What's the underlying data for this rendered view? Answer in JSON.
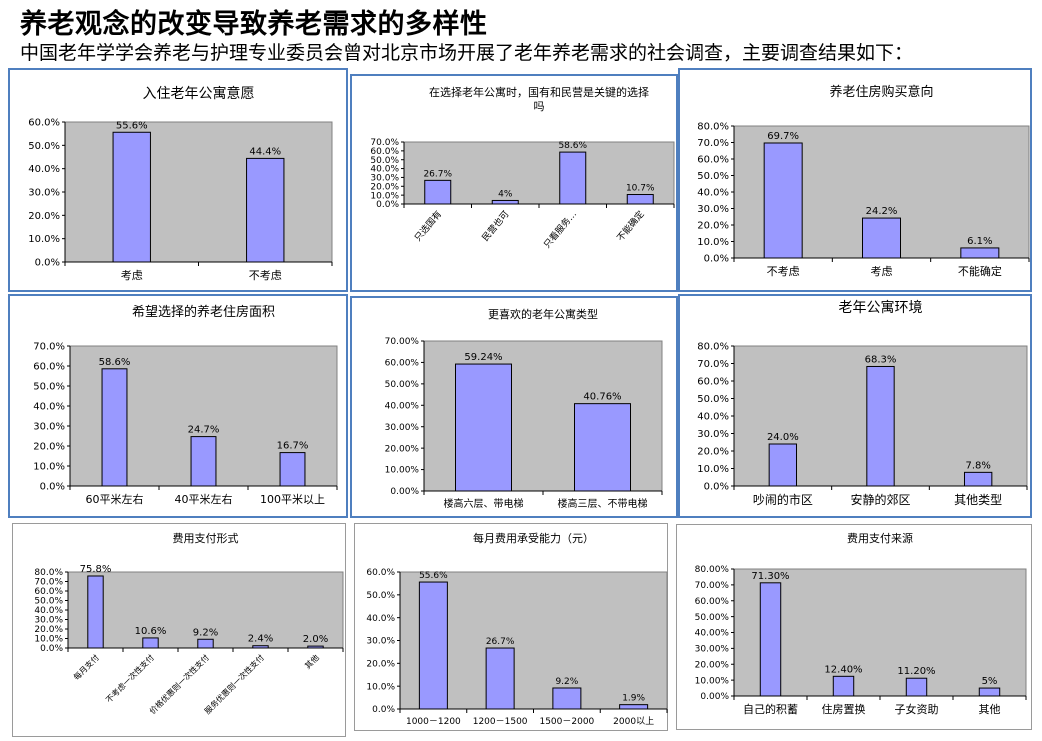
{
  "slide": {
    "title": "养老观念的改变导致养老需求的多样性",
    "subtitle": "中国老年学学会养老与护理专业委员会曾对北京市场开展了老年养老需求的社会调查，主要调查结果如下："
  },
  "colors": {
    "bar": "#9999ff",
    "plot_bg": "#c0c0c0",
    "frame": "#4f7fbf"
  },
  "chart_data": [
    {
      "type": "bar",
      "title": "入住老年公寓意愿",
      "categories": [
        "考虑",
        "不考虑"
      ],
      "values": [
        55.6,
        44.4
      ],
      "value_labels": [
        "55.6%",
        "44.4%"
      ],
      "yticks": [
        "0.0%",
        "10.0%",
        "20.0%",
        "30.0%",
        "40.0%",
        "50.0%",
        "60.0%"
      ],
      "ylim": [
        0,
        60
      ],
      "grid": false,
      "legend": "none"
    },
    {
      "type": "bar",
      "title": "在选择老年公寓时，国有和民营是关键的选择吗",
      "title_lines": [
        "在选择老年公寓时，国有和民营是关键的选择",
        "吗"
      ],
      "categories": [
        "只选国有",
        "民营也可",
        "只看服务…",
        "不能确定"
      ],
      "values": [
        26.7,
        4,
        58.6,
        10.7
      ],
      "value_labels": [
        "26.7%",
        "4%",
        "58.6%",
        "10.7%"
      ],
      "yticks": [
        "0.0%",
        "10.0%",
        "20.0%",
        "30.0%",
        "40.0%",
        "50.0%",
        "60.0%",
        "70.0%"
      ],
      "ylim": [
        0,
        70
      ],
      "grid": false,
      "legend": "none"
    },
    {
      "type": "bar",
      "title": "养老住房购买意向",
      "categories": [
        "不考虑",
        "考虑",
        "不能确定"
      ],
      "values": [
        69.7,
        24.2,
        6.1
      ],
      "value_labels": [
        "69.7%",
        "24.2%",
        "6.1%"
      ],
      "yticks": [
        "0.0%",
        "10.0%",
        "20.0%",
        "30.0%",
        "40.0%",
        "50.0%",
        "60.0%",
        "70.0%",
        "80.0%"
      ],
      "ylim": [
        0,
        80
      ],
      "grid": false,
      "legend": "none"
    },
    {
      "type": "bar",
      "title": "希望选择的养老住房面积",
      "categories": [
        "60平米左右",
        "40平米左右",
        "100平米以上"
      ],
      "values": [
        58.6,
        24.7,
        16.7
      ],
      "value_labels": [
        "58.6%",
        "24.7%",
        "16.7%"
      ],
      "yticks": [
        "0.0%",
        "10.0%",
        "20.0%",
        "30.0%",
        "40.0%",
        "50.0%",
        "60.0%",
        "70.0%"
      ],
      "ylim": [
        0,
        70
      ],
      "grid": false,
      "legend": "none"
    },
    {
      "type": "bar",
      "title": "更喜欢的老年公寓类型",
      "categories": [
        "楼高六层、带电梯",
        "楼高三层、不带电梯"
      ],
      "values": [
        59.24,
        40.76
      ],
      "value_labels": [
        "59.24%",
        "40.76%"
      ],
      "yticks": [
        "0.00%",
        "10.00%",
        "20.00%",
        "30.00%",
        "40.00%",
        "50.00%",
        "60.00%",
        "70.00%"
      ],
      "ylim": [
        0,
        70
      ],
      "grid": false,
      "legend": "none"
    },
    {
      "type": "bar",
      "title": "老年公寓环境",
      "categories": [
        "吵闹的市区",
        "安静的郊区",
        "其他类型"
      ],
      "values": [
        24.0,
        68.3,
        7.8
      ],
      "value_labels": [
        "24.0%",
        "68.3%",
        "7.8%"
      ],
      "yticks": [
        "0.0%",
        "10.0%",
        "20.0%",
        "30.0%",
        "40.0%",
        "50.0%",
        "60.0%",
        "70.0%",
        "80.0%"
      ],
      "ylim": [
        0,
        80
      ],
      "grid": false,
      "legend": "none"
    },
    {
      "type": "bar",
      "title": "费用支付形式",
      "categories": [
        "每月支付",
        "不考虑一次性支付",
        "价格优惠则一次性支付",
        "服务优惠则一次性支付",
        "其他"
      ],
      "values": [
        75.8,
        10.6,
        9.2,
        2.4,
        2.0
      ],
      "value_labels": [
        "75.8%",
        "10.6%",
        "9.2%",
        "2.4%",
        "2.0%"
      ],
      "yticks": [
        "0.0%",
        "10.0%",
        "20.0%",
        "30.0%",
        "40.0%",
        "50.0%",
        "60.0%",
        "70.0%",
        "80.0%"
      ],
      "ylim": [
        0,
        80
      ],
      "grid": false,
      "legend": "none"
    },
    {
      "type": "bar",
      "title": "每月费用承受能力（元）",
      "categories": [
        "1000－1200",
        "1200－1500",
        "1500－2000",
        "2000以上"
      ],
      "values": [
        55.6,
        26.7,
        9.2,
        1.9
      ],
      "value_labels": [
        "55.6%",
        "26.7%",
        "9.2%",
        "1.9%"
      ],
      "yticks": [
        "0.0%",
        "10.0%",
        "20.0%",
        "30.0%",
        "40.0%",
        "50.0%",
        "60.0%"
      ],
      "ylim": [
        0,
        60
      ],
      "grid": false,
      "legend": "none"
    },
    {
      "type": "bar",
      "title": "费用支付来源",
      "categories": [
        "自己的积蓄",
        "住房置换",
        "子女资助",
        "其他"
      ],
      "values": [
        71.3,
        12.4,
        11.2,
        5
      ],
      "value_labels": [
        "71.30%",
        "12.40%",
        "11.20%",
        "5%"
      ],
      "yticks": [
        "0.00%",
        "10.00%",
        "20.00%",
        "30.00%",
        "40.00%",
        "50.00%",
        "60.00%",
        "70.00%",
        "80.00%"
      ],
      "ylim": [
        0,
        80
      ],
      "grid": false,
      "legend": "none"
    }
  ]
}
